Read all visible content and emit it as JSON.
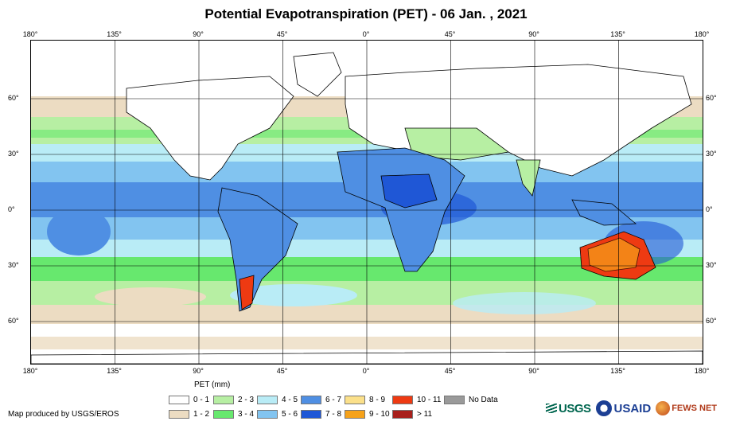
{
  "title": "Potential Evapotranspiration (PET) - 06 Jan. , 2021",
  "axes": {
    "longitudes": [
      "180°",
      "135°",
      "90°",
      "45°",
      "0°",
      "45°",
      "90°",
      "135°",
      "180°"
    ],
    "latitudes": [
      "60°",
      "30°",
      "0°",
      "30°",
      "60°"
    ]
  },
  "legend": {
    "title": "PET (mm)",
    "items": [
      {
        "label": "0 - 1",
        "color": "#ffffff"
      },
      {
        "label": "1 - 2",
        "color": "#ecdcc2"
      },
      {
        "label": "2 - 3",
        "color": "#b7efa3"
      },
      {
        "label": "3 - 4",
        "color": "#67e86e"
      },
      {
        "label": "4 - 5",
        "color": "#b9ecf6"
      },
      {
        "label": "5 - 6",
        "color": "#82c4f0"
      },
      {
        "label": "6 - 7",
        "color": "#4f8fe3"
      },
      {
        "label": "7 - 8",
        "color": "#1f57d6"
      },
      {
        "label": "8 - 9",
        "color": "#fbe08a"
      },
      {
        "label": "9 - 10",
        "color": "#f6a21a"
      },
      {
        "label": "10 - 11",
        "color": "#ee3a12"
      },
      {
        "label": "> 11",
        "color": "#a8201c"
      },
      {
        "label": "No Data",
        "color": "#9a9a9a"
      }
    ]
  },
  "credit": "Map produced by USGS/EROS",
  "logos": {
    "usgs": "USGS",
    "usaid": "USAID",
    "fews": "FEWS NET"
  },
  "colors": {
    "ocean_grid": "#ffffff",
    "border": "#000000"
  }
}
